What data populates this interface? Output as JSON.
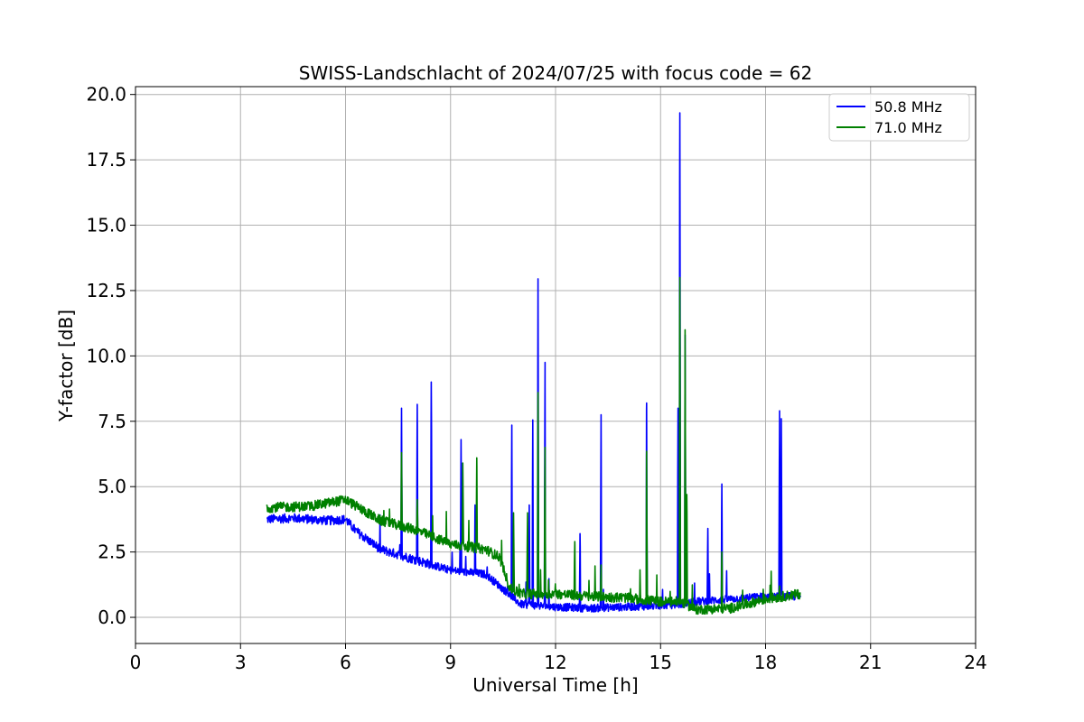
{
  "chart_data": {
    "type": "line",
    "title": "SWISS-Landschlacht of 2024/07/25 with focus code = 62",
    "xlabel": "Universal Time [h]",
    "ylabel": "Y-factor [dB]",
    "xlim": [
      0,
      24
    ],
    "ylim": [
      -1.0,
      20.3
    ],
    "xticks": [
      0,
      3,
      6,
      9,
      12,
      15,
      18,
      21,
      24
    ],
    "xtick_labels": [
      "0",
      "3",
      "6",
      "9",
      "12",
      "15",
      "18",
      "21",
      "24"
    ],
    "yticks": [
      0,
      2.5,
      5,
      7.5,
      10,
      12.5,
      15,
      17.5,
      20
    ],
    "ytick_labels": [
      "0.0",
      "2.5",
      "5.0",
      "7.5",
      "10.0",
      "12.5",
      "15.0",
      "17.5",
      "20.0"
    ],
    "grid": true,
    "legend_position": "top-right",
    "series": [
      {
        "name": "50.8 MHz",
        "color": "#0000ff",
        "baseline": [
          [
            3.75,
            3.75
          ],
          [
            4.5,
            3.8
          ],
          [
            5.5,
            3.7
          ],
          [
            6.0,
            3.75
          ],
          [
            6.3,
            3.3
          ],
          [
            7.0,
            2.6
          ],
          [
            8.0,
            2.2
          ],
          [
            9.0,
            1.8
          ],
          [
            10.0,
            1.65
          ],
          [
            10.4,
            1.2
          ],
          [
            11.0,
            0.5
          ],
          [
            12.0,
            0.4
          ],
          [
            13.0,
            0.35
          ],
          [
            14.0,
            0.4
          ],
          [
            15.0,
            0.45
          ],
          [
            15.6,
            0.5
          ],
          [
            16.0,
            0.6
          ],
          [
            17.0,
            0.7
          ],
          [
            18.0,
            0.8
          ],
          [
            19.0,
            0.8
          ]
        ],
        "spikes": [
          [
            7.6,
            8.0
          ],
          [
            8.05,
            8.15
          ],
          [
            8.45,
            9.0
          ],
          [
            9.3,
            6.8
          ],
          [
            9.7,
            4.3
          ],
          [
            10.75,
            7.35
          ],
          [
            11.25,
            4.3
          ],
          [
            11.35,
            7.55
          ],
          [
            11.5,
            12.95
          ],
          [
            11.7,
            9.75
          ],
          [
            12.7,
            3.2
          ],
          [
            13.3,
            7.75
          ],
          [
            14.6,
            8.2
          ],
          [
            15.5,
            8.0
          ],
          [
            15.55,
            19.3
          ],
          [
            15.7,
            10.8
          ],
          [
            16.35,
            3.4
          ],
          [
            16.75,
            5.1
          ],
          [
            18.4,
            7.9
          ],
          [
            18.45,
            7.6
          ]
        ]
      },
      {
        "name": "71.0 MHz",
        "color": "#008000",
        "baseline": [
          [
            3.75,
            4.2
          ],
          [
            5.0,
            4.25
          ],
          [
            6.0,
            4.5
          ],
          [
            6.5,
            4.1
          ],
          [
            7.0,
            3.7
          ],
          [
            8.0,
            3.35
          ],
          [
            9.0,
            2.8
          ],
          [
            10.0,
            2.6
          ],
          [
            10.4,
            2.3
          ],
          [
            10.7,
            1.1
          ],
          [
            11.0,
            0.9
          ],
          [
            12.0,
            0.9
          ],
          [
            13.0,
            0.8
          ],
          [
            14.0,
            0.75
          ],
          [
            15.0,
            0.6
          ],
          [
            15.6,
            0.6
          ],
          [
            16.0,
            0.3
          ],
          [
            17.0,
            0.35
          ],
          [
            18.0,
            0.7
          ],
          [
            19.0,
            0.9
          ]
        ],
        "spikes": [
          [
            7.6,
            6.3
          ],
          [
            8.05,
            4.5
          ],
          [
            9.35,
            5.9
          ],
          [
            9.75,
            6.1
          ],
          [
            10.8,
            4.0
          ],
          [
            11.2,
            4.0
          ],
          [
            11.5,
            8.6
          ],
          [
            11.7,
            6.5
          ],
          [
            12.55,
            2.9
          ],
          [
            13.3,
            2.0
          ],
          [
            14.6,
            6.35
          ],
          [
            15.55,
            13.0
          ],
          [
            15.7,
            11.0
          ],
          [
            15.75,
            4.7
          ],
          [
            16.75,
            2.5
          ],
          [
            18.4,
            1.2
          ]
        ]
      }
    ]
  }
}
